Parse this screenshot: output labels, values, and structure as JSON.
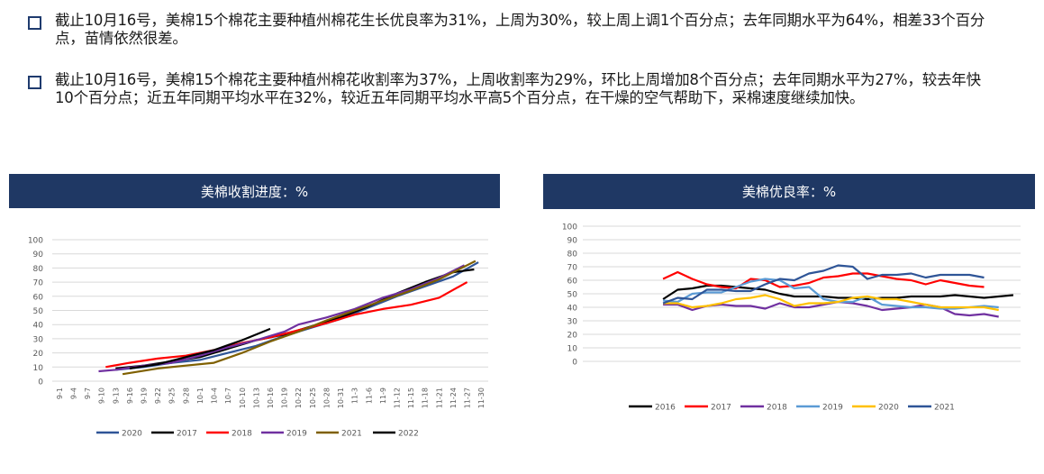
{
  "bullets": [
    "截止10月16号，美棉15个棉花主要种植州棉花生长优良率为31%，上周为30%，较上周上调1个百分点；去年同期水平为64%，相差33个百分点，苗情依然很差。",
    " 截止10月16号，美棉15个棉花主要种植州棉花收割率为37%，上周收割率为29%，环比上周增加8个百分点；去年同期水平为27%，较去年快10个百分点；近五年同期平均水平在32%，较近五年同期平均水平高5个百分点，在干燥的空气帮助下，采棉速度继续加快。"
  ],
  "chart_data": [
    {
      "type": "line",
      "title": "美棉收割进度：%",
      "ylim": [
        0,
        100
      ],
      "yticks": [
        0,
        10,
        20,
        30,
        40,
        50,
        60,
        70,
        80,
        90,
        100
      ],
      "categories": [
        "9-1",
        "9-4",
        "9-7",
        "9-10",
        "9-13",
        "9-16",
        "9-19",
        "9-22",
        "9-25",
        "9-28",
        "10-1",
        "10-4",
        "10-7",
        "10-10",
        "10-13",
        "10-16",
        "10-19",
        "10-22",
        "10-25",
        "10-28",
        "10-31",
        "11-3",
        "11-6",
        "11-9",
        "11-12",
        "11-15",
        "11-18",
        "11-21",
        "11-24",
        "11-27",
        "11-30"
      ],
      "grid": true,
      "legend_position": "bottom",
      "series": [
        {
          "name": "2020",
          "color": "#2f5597",
          "points": [
            [
              4,
              8
            ],
            [
              6,
              10
            ],
            [
              8,
              13
            ],
            [
              10,
              15
            ],
            [
              12,
              20
            ],
            [
              14,
              25
            ],
            [
              16,
              32
            ],
            [
              18,
              38
            ],
            [
              20,
              44
            ],
            [
              22,
              52
            ],
            [
              24,
              60
            ],
            [
              26,
              67
            ],
            [
              28,
              74
            ],
            [
              29.8,
              84
            ]
          ]
        },
        {
          "name": "2017",
          "color": "#000000",
          "points": [
            [
              4,
              9
            ],
            [
              6,
              11
            ],
            [
              8,
              14
            ],
            [
              10,
              17
            ],
            [
              12,
              23
            ],
            [
              14,
              29
            ],
            [
              16,
              33
            ],
            [
              18,
              39
            ],
            [
              20,
              45
            ],
            [
              22,
              53
            ],
            [
              24,
              62
            ],
            [
              26,
              70
            ],
            [
              28,
              77
            ],
            [
              29.5,
              79
            ]
          ]
        },
        {
          "name": "2018",
          "color": "#ff0000",
          "points": [
            [
              3.3,
              10
            ],
            [
              5,
              13
            ],
            [
              7,
              16
            ],
            [
              9,
              18
            ],
            [
              11,
              22
            ],
            [
              13,
              27
            ],
            [
              15,
              31
            ],
            [
              17,
              36
            ],
            [
              19,
              41
            ],
            [
              21,
              47
            ],
            [
              23,
              51
            ],
            [
              25,
              54
            ],
            [
              27,
              59
            ],
            [
              29,
              70
            ]
          ]
        },
        {
          "name": "2019",
          "color": "#7030a0",
          "points": [
            [
              2.8,
              7
            ],
            [
              4,
              8
            ],
            [
              6,
              11
            ],
            [
              8,
              13
            ],
            [
              10,
              18
            ],
            [
              12,
              24
            ],
            [
              14,
              29
            ],
            [
              16,
              35
            ],
            [
              17,
              40
            ],
            [
              19,
              45
            ],
            [
              21,
              51
            ],
            [
              23,
              59
            ],
            [
              25,
              65
            ],
            [
              27,
              73
            ],
            [
              28.8,
              82
            ]
          ]
        },
        {
          "name": "2021",
          "color": "#7f6000",
          "points": [
            [
              4.5,
              5
            ],
            [
              7,
              9
            ],
            [
              9,
              11
            ],
            [
              11,
              13
            ],
            [
              13,
              20
            ],
            [
              15,
              28
            ],
            [
              17,
              35
            ],
            [
              19,
              43
            ],
            [
              21,
              50
            ],
            [
              23,
              57
            ],
            [
              25,
              64
            ],
            [
              27,
              72
            ],
            [
              29,
              82
            ],
            [
              29.6,
              85
            ]
          ]
        },
        {
          "name": "2022",
          "color": "#000000",
          "points": [
            [
              5,
              9
            ],
            [
              7,
              12
            ],
            [
              9,
              17
            ],
            [
              11,
              22
            ],
            [
              13,
              29
            ],
            [
              15,
              37
            ]
          ]
        }
      ]
    },
    {
      "type": "line",
      "title": "美棉优良率：%",
      "ylim": [
        0,
        100
      ],
      "yticks": [
        0,
        10,
        20,
        30,
        40,
        50,
        60,
        70,
        80,
        90,
        100
      ],
      "grid": true,
      "legend_position": "bottom",
      "x_count": 30,
      "series": [
        {
          "name": "2016",
          "color": "#000000",
          "values": [
            null,
            null,
            null,
            null,
            null,
            46,
            53,
            54,
            56,
            56,
            55,
            54,
            53,
            50,
            48,
            48,
            48,
            47,
            47,
            46,
            47,
            47,
            48,
            48,
            48,
            49,
            48,
            47,
            48,
            49
          ]
        },
        {
          "name": "2017",
          "color": "#ff0000",
          "values": [
            null,
            null,
            null,
            null,
            null,
            61,
            66,
            61,
            57,
            55,
            54,
            61,
            60,
            55,
            56,
            58,
            62,
            63,
            65,
            65,
            63,
            61,
            60,
            57,
            60,
            58,
            56,
            55,
            null,
            null
          ]
        },
        {
          "name": "2018",
          "color": "#7030a0",
          "values": [
            null,
            null,
            null,
            null,
            null,
            42,
            42,
            38,
            41,
            42,
            41,
            41,
            39,
            43,
            40,
            40,
            42,
            44,
            43,
            41,
            38,
            39,
            40,
            42,
            40,
            35,
            34,
            35,
            33,
            null
          ]
        },
        {
          "name": "2019",
          "color": "#5b9bd5",
          "values": [
            null,
            null,
            null,
            null,
            null,
            45,
            44,
            50,
            51,
            51,
            55,
            59,
            61,
            60,
            54,
            55,
            46,
            44,
            44,
            48,
            42,
            41,
            40,
            40,
            39,
            39,
            40,
            41,
            40,
            null
          ]
        },
        {
          "name": "2020",
          "color": "#ffc000",
          "values": [
            null,
            null,
            null,
            null,
            null,
            43,
            43,
            40,
            41,
            43,
            46,
            47,
            49,
            46,
            41,
            43,
            43,
            44,
            47,
            48,
            46,
            46,
            44,
            42,
            40,
            40,
            40,
            40,
            38,
            null
          ]
        },
        {
          "name": "2021",
          "color": "#2f5597",
          "values": [
            null,
            null,
            null,
            null,
            null,
            43,
            47,
            46,
            53,
            53,
            52,
            52,
            57,
            61,
            60,
            65,
            67,
            71,
            70,
            61,
            64,
            64,
            65,
            62,
            64,
            64,
            64,
            62,
            null,
            null
          ]
        }
      ]
    }
  ]
}
